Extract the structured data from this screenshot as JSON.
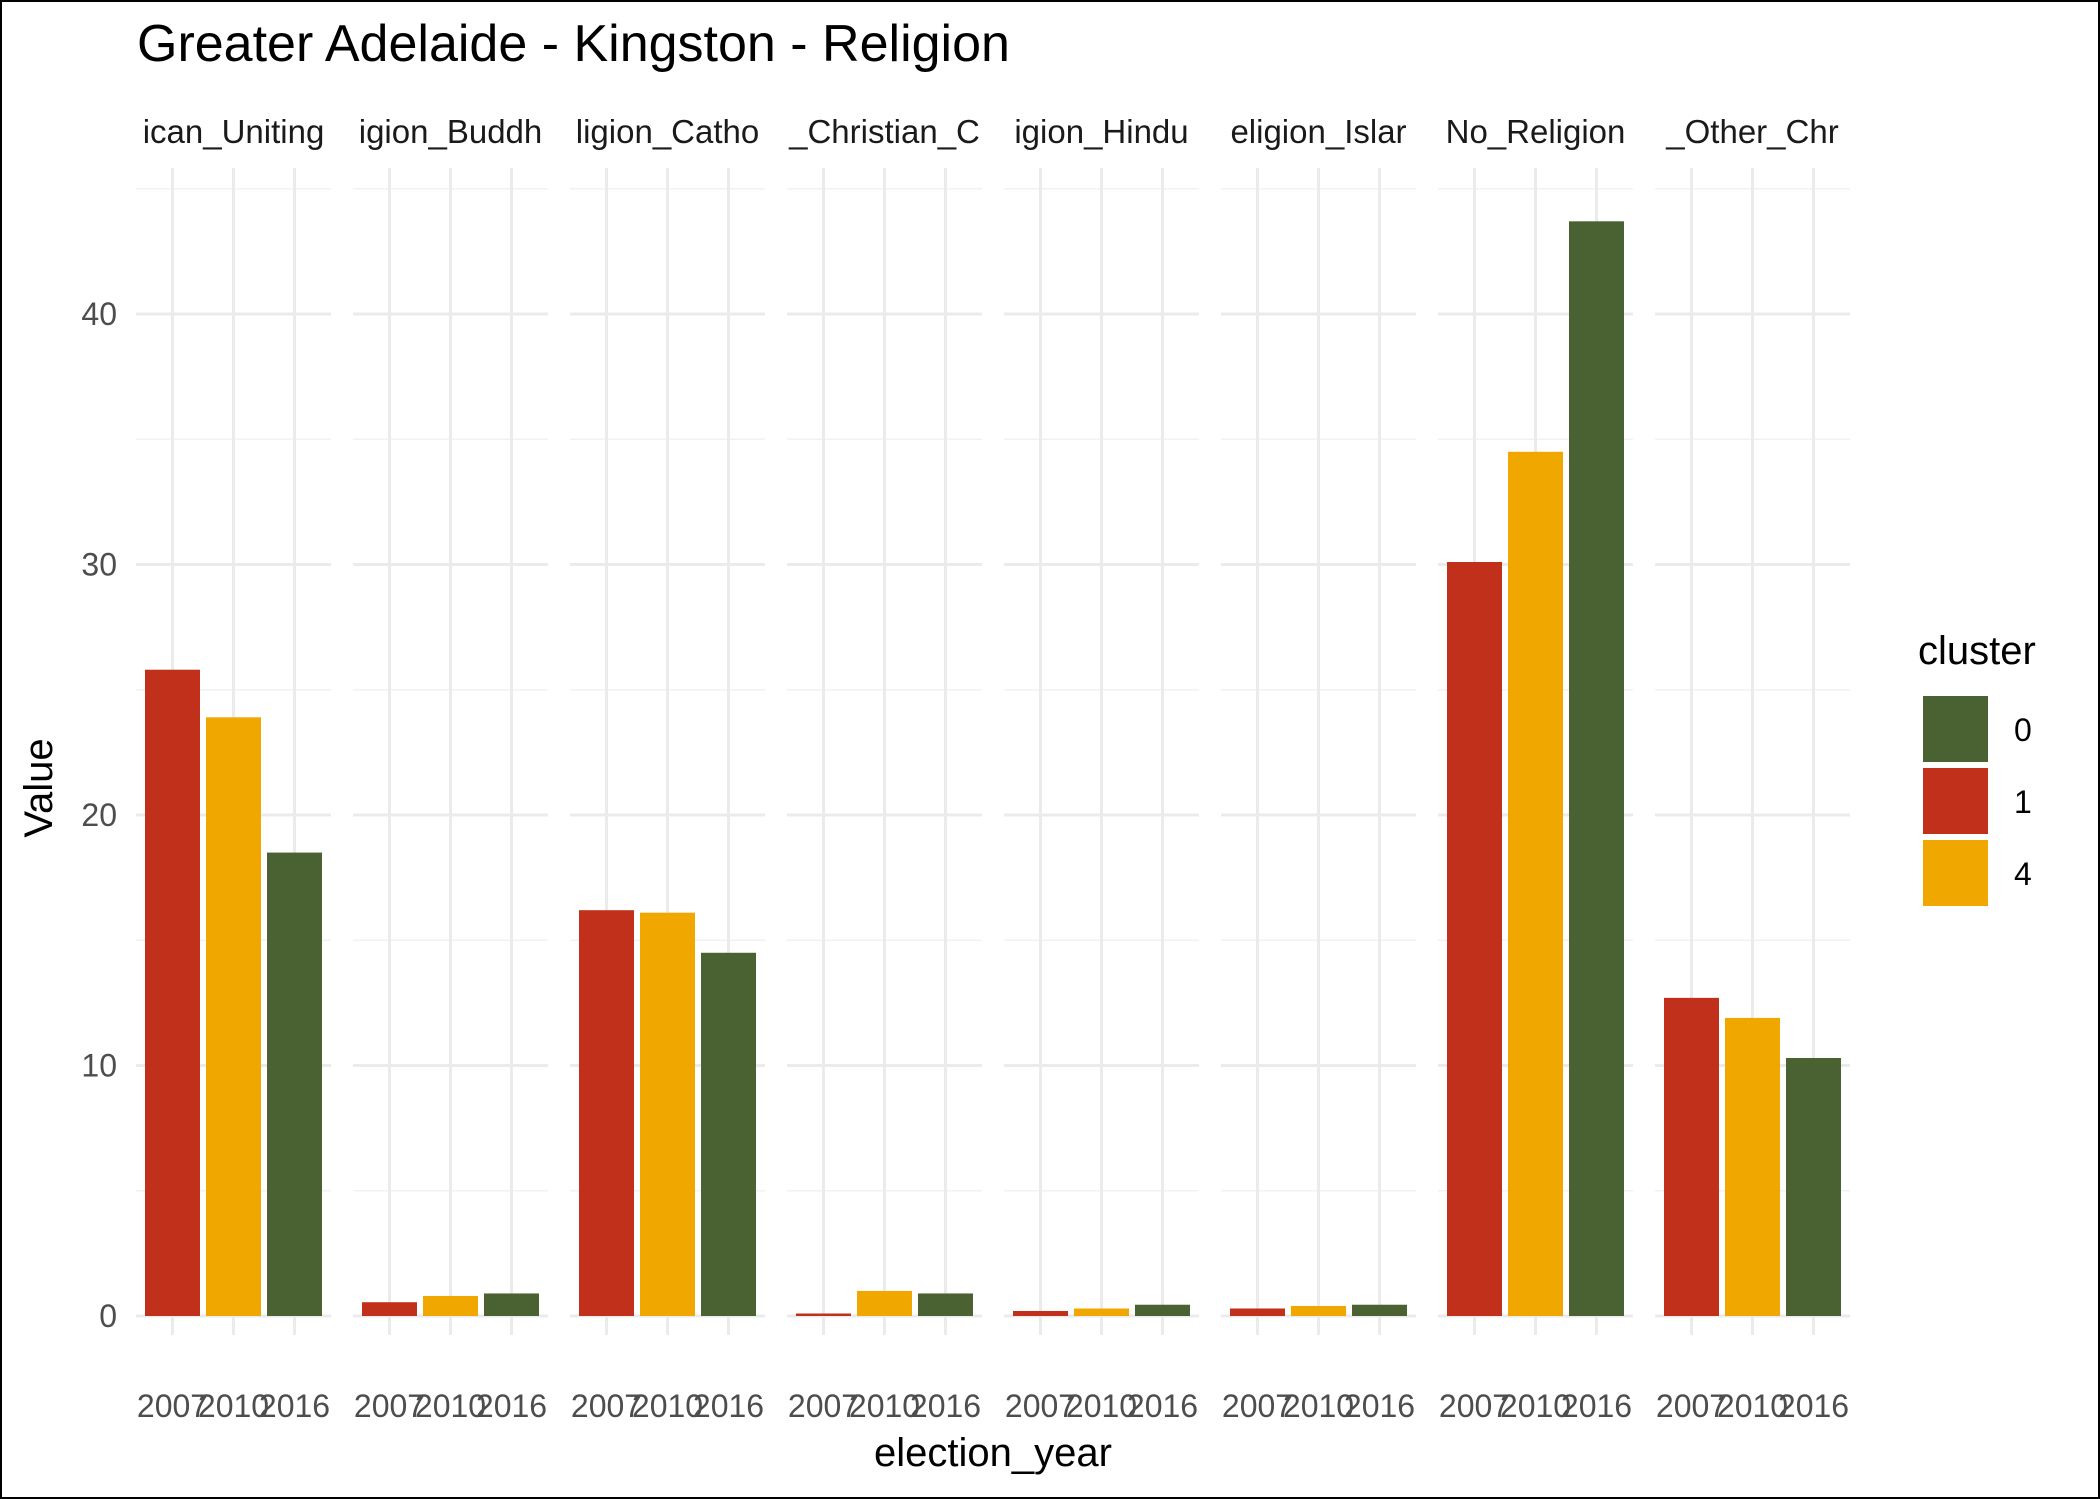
{
  "chart_data": {
    "type": "bar",
    "title": "Greater Adelaide - Kingston - Religion",
    "xlabel": "election_year",
    "ylabel": "Value",
    "ylim": [
      0,
      45.8
    ],
    "y_ticks": [
      0,
      10,
      20,
      30,
      40
    ],
    "x_categories": [
      "2007",
      "2010",
      "2016"
    ],
    "grid": true,
    "legend": {
      "title": "cluster",
      "position": "right",
      "entries": [
        {
          "label": "0",
          "color": "#4a6131"
        },
        {
          "label": "1",
          "color": "#c0301a"
        },
        {
          "label": "4",
          "color": "#f0a800"
        }
      ]
    },
    "facets": [
      {
        "label": "ican_Uniting",
        "bars": [
          {
            "year": "2007",
            "cluster": "1",
            "value": 25.8
          },
          {
            "year": "2010",
            "cluster": "4",
            "value": 23.9
          },
          {
            "year": "2016",
            "cluster": "0",
            "value": 18.5
          }
        ]
      },
      {
        "label": "igion_Buddh",
        "bars": [
          {
            "year": "2007",
            "cluster": "1",
            "value": 0.55
          },
          {
            "year": "2010",
            "cluster": "4",
            "value": 0.8
          },
          {
            "year": "2016",
            "cluster": "0",
            "value": 0.9
          }
        ]
      },
      {
        "label": "ligion_Catho",
        "bars": [
          {
            "year": "2007",
            "cluster": "1",
            "value": 16.2
          },
          {
            "year": "2010",
            "cluster": "4",
            "value": 16.1
          },
          {
            "year": "2016",
            "cluster": "0",
            "value": 14.5
          }
        ]
      },
      {
        "label": "_Christian_C",
        "bars": [
          {
            "year": "2007",
            "cluster": "1",
            "value": 0.1
          },
          {
            "year": "2010",
            "cluster": "4",
            "value": 1.0
          },
          {
            "year": "2016",
            "cluster": "0",
            "value": 0.9
          }
        ]
      },
      {
        "label": "igion_Hindu",
        "bars": [
          {
            "year": "2007",
            "cluster": "1",
            "value": 0.2
          },
          {
            "year": "2010",
            "cluster": "4",
            "value": 0.3
          },
          {
            "year": "2016",
            "cluster": "0",
            "value": 0.45
          }
        ]
      },
      {
        "label": "eligion_Islar",
        "bars": [
          {
            "year": "2007",
            "cluster": "1",
            "value": 0.3
          },
          {
            "year": "2010",
            "cluster": "4",
            "value": 0.4
          },
          {
            "year": "2016",
            "cluster": "0",
            "value": 0.45
          }
        ]
      },
      {
        "label": "No_Religion",
        "bars": [
          {
            "year": "2007",
            "cluster": "1",
            "value": 30.1
          },
          {
            "year": "2010",
            "cluster": "4",
            "value": 34.5
          },
          {
            "year": "2016",
            "cluster": "0",
            "value": 43.7
          }
        ]
      },
      {
        "label": "_Other_Chr",
        "bars": [
          {
            "year": "2007",
            "cluster": "1",
            "value": 12.7
          },
          {
            "year": "2010",
            "cluster": "4",
            "value": 11.9
          },
          {
            "year": "2016",
            "cluster": "0",
            "value": 10.3
          }
        ]
      }
    ]
  }
}
